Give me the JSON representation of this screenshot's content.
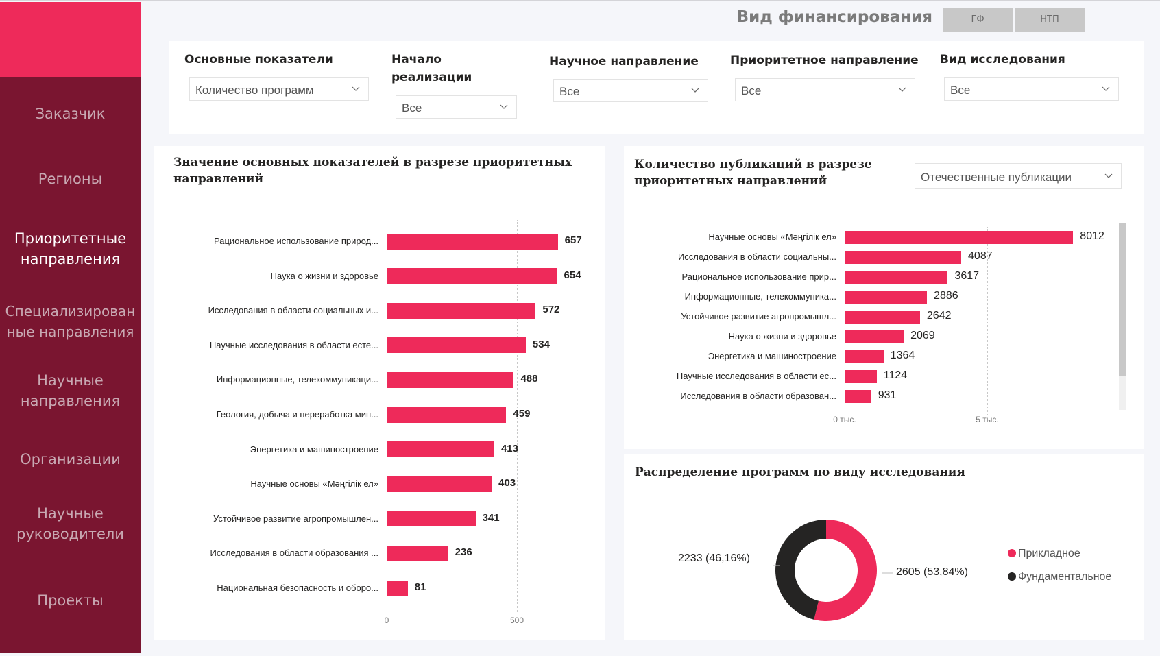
{
  "colors": {
    "accent": "#ee2a5a",
    "sidebar": "#7a1530",
    "dark": "#252423"
  },
  "sidebar": {
    "items": [
      {
        "label": "Заказчик"
      },
      {
        "label": "Регионы"
      },
      {
        "label": "Приоритетные направления",
        "line1": "Приоритетные",
        "line2": "направления",
        "active": true
      },
      {
        "label": "Специализированные направления",
        "line1": "Специализирован",
        "line2": "ные направления"
      },
      {
        "label": "Научные направления",
        "line1": "Научные",
        "line2": "направления"
      },
      {
        "label": "Организации"
      },
      {
        "label": "Научные руководители",
        "line1": "Научные",
        "line2": "руководители"
      },
      {
        "label": "Проекты"
      }
    ]
  },
  "header": {
    "title": "Вид финансирования",
    "buttons": [
      {
        "label": "ГФ"
      },
      {
        "label": "НТП"
      }
    ]
  },
  "filters": [
    {
      "label": "Основные показатели",
      "value": "Количество программ"
    },
    {
      "label_line1": "Начало",
      "label_line2": "реализации",
      "value": "Все"
    },
    {
      "label": "Научное направление",
      "value": "Все"
    },
    {
      "label": "Приоритетное направление",
      "value": "Все"
    },
    {
      "label": "Вид исследования",
      "value": "Все"
    }
  ],
  "chart_data": [
    {
      "type": "bar",
      "orientation": "horizontal",
      "title": "Значение основных показателей в разрезе приоритетных направлений",
      "title_line1": "Значение основных показателей в разрезе приоритетных",
      "title_line2": "направлений",
      "categories": [
        "Рациональное использование природ...",
        "Наука о жизни и здоровье",
        "Исследования в области социальных и...",
        "Научные исследования в области есте...",
        "Информационные, телекоммуникаци...",
        "Геология, добыча и переработка мин...",
        "Энергетика и машиностроение",
        "Научные основы «Мәңгілік ел»",
        "Устойчивое развитие агропромышлен...",
        "Исследования в области образования ...",
        "Национальная безопасность и оборо..."
      ],
      "values": [
        657,
        654,
        572,
        534,
        488,
        459,
        413,
        403,
        341,
        236,
        81
      ],
      "xticks": [
        "0",
        "500"
      ],
      "xtick_values": [
        0,
        500
      ],
      "xlim": [
        0,
        750
      ],
      "grid": true
    },
    {
      "type": "bar",
      "orientation": "horizontal",
      "title": "Количество публикаций в разрезе приоритетных направлений",
      "title_line1": "Количество публикаций в разрезе",
      "title_line2": "приоритетных направлений",
      "selector": "Отечественные публикации",
      "categories": [
        "Научные основы «Мәңгілік ел»",
        "Исследования в области социальны...",
        "Рациональное использование прир...",
        "Информационные, телекоммуника...",
        "Устойчивое развитие агропромышл...",
        "Наука о жизни и здоровье",
        "Энергетика и машиностроение",
        "Научные исследования в области ес...",
        "Исследования в области образован..."
      ],
      "values": [
        8012,
        4087,
        3617,
        2886,
        2642,
        2069,
        1364,
        1124,
        931
      ],
      "xticks": [
        "0 тыс.",
        "5 тыс."
      ],
      "xtick_values": [
        0,
        5000
      ],
      "xlim": [
        0,
        9000
      ],
      "grid": true
    },
    {
      "type": "pie",
      "variant": "donut",
      "title": "Распределение программ по виду исследования",
      "slices": [
        {
          "name": "Прикладное",
          "value": 2605,
          "percent": 53.84,
          "label": "2605 (53,84%)",
          "color": "#ee2a5a"
        },
        {
          "name": "Фундаментальное",
          "value": 2233,
          "percent": 46.16,
          "label": "2233 (46,16%)",
          "color": "#252423"
        }
      ],
      "legend": "right"
    }
  ]
}
